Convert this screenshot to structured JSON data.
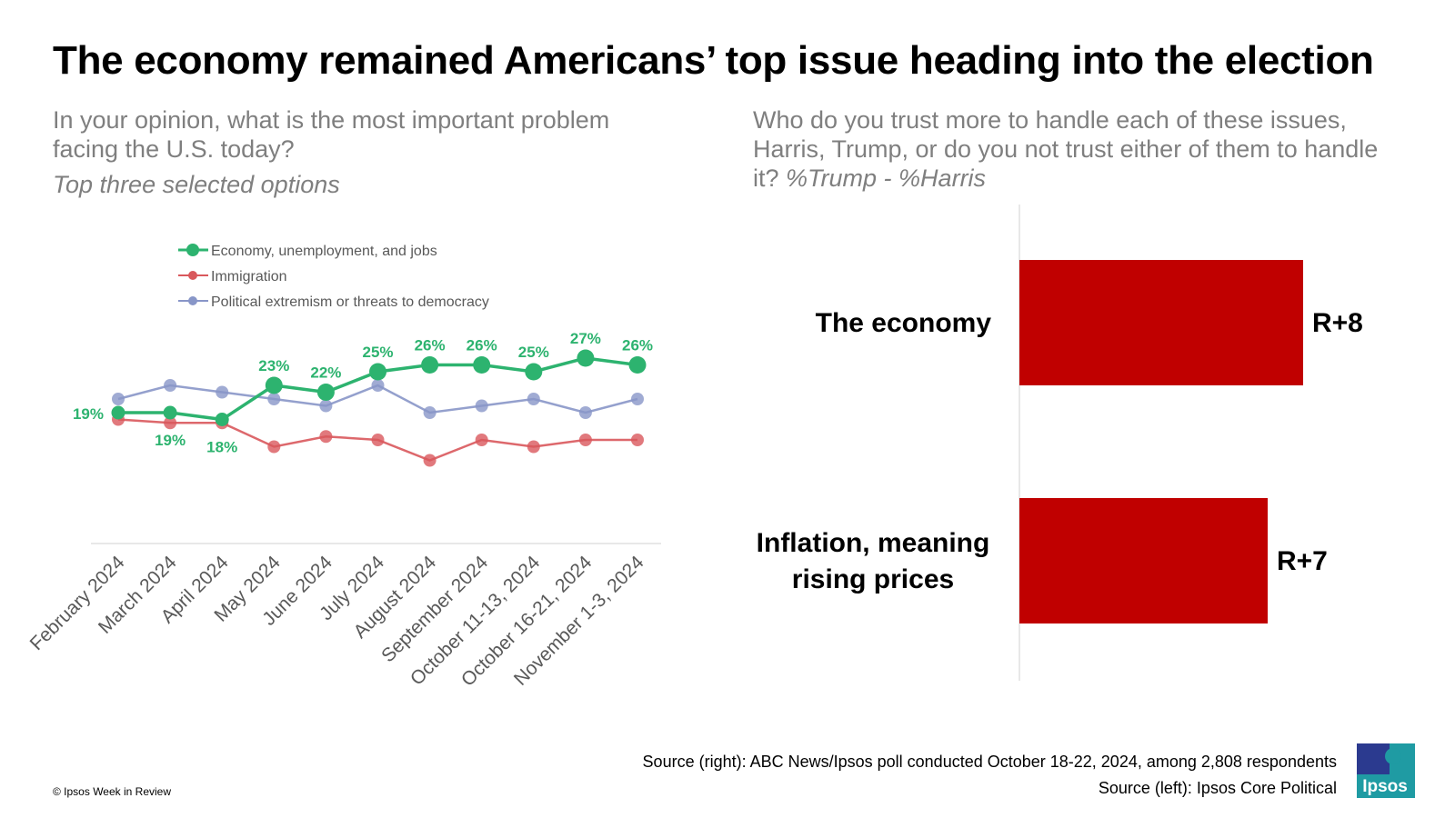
{
  "title": "The economy remained Americans’ top issue heading into the election",
  "left_panel": {
    "question": "In your opinion, what is the most important problem facing the U.S. today?",
    "subtitle": "Top three selected options"
  },
  "right_panel": {
    "question": "Who do you trust more to handle each of these issues, Harris, Trump, or do you not trust either of them to handle it?",
    "measure": "%Trump - %Harris"
  },
  "chart_data": [
    {
      "type": "line",
      "categories": [
        "February 2024",
        "March 2024",
        "April 2024",
        "May 2024",
        "June 2024",
        "July 2024",
        "August 2024",
        "September 2024",
        "October 11-13, 2024",
        "October 16-21, 2024",
        "November 1-3, 2024"
      ],
      "series": [
        {
          "name": "Economy, unemployment, and jobs",
          "color": "#2db36f",
          "values": [
            19,
            19,
            18,
            23,
            22,
            25,
            26,
            26,
            25,
            27,
            26
          ]
        },
        {
          "name": "Immigration",
          "color": "#d9585c",
          "values": [
            18,
            17.5,
            17.5,
            14,
            15.5,
            15,
            12,
            15,
            14,
            15,
            15
          ]
        },
        {
          "name": "Political extremism or threats to democracy",
          "color": "#8896c8",
          "values": [
            21,
            23,
            22,
            21,
            20,
            23,
            19,
            20,
            21,
            19,
            21
          ]
        }
      ],
      "labels": [
        "19%",
        "19%",
        "18%",
        "23%",
        "22%",
        "25%",
        "26%",
        "26%",
        "25%",
        "27%",
        "26%"
      ],
      "legend_position": "top-left",
      "grid": false
    },
    {
      "type": "bar",
      "orientation": "horizontal",
      "categories": [
        "The economy",
        "Inflation, meaning rising prices"
      ],
      "values": [
        8,
        7
      ],
      "labels": [
        "R+8",
        "R+7"
      ],
      "color": "#c00000",
      "xlim": [
        0,
        9
      ]
    }
  ],
  "sources": {
    "right": "Source (right): ABC News/Ipsos poll conducted October 18-22, 2024, among 2,808 respondents",
    "left": "Source (left): Ipsos Core Political"
  },
  "copyright": "© Ipsos Week in Review",
  "logo": {
    "text": "Ipsos",
    "color": "#1f9ba3",
    "accent": "#2b3a8f",
    "icon": "ipsos-logo"
  }
}
